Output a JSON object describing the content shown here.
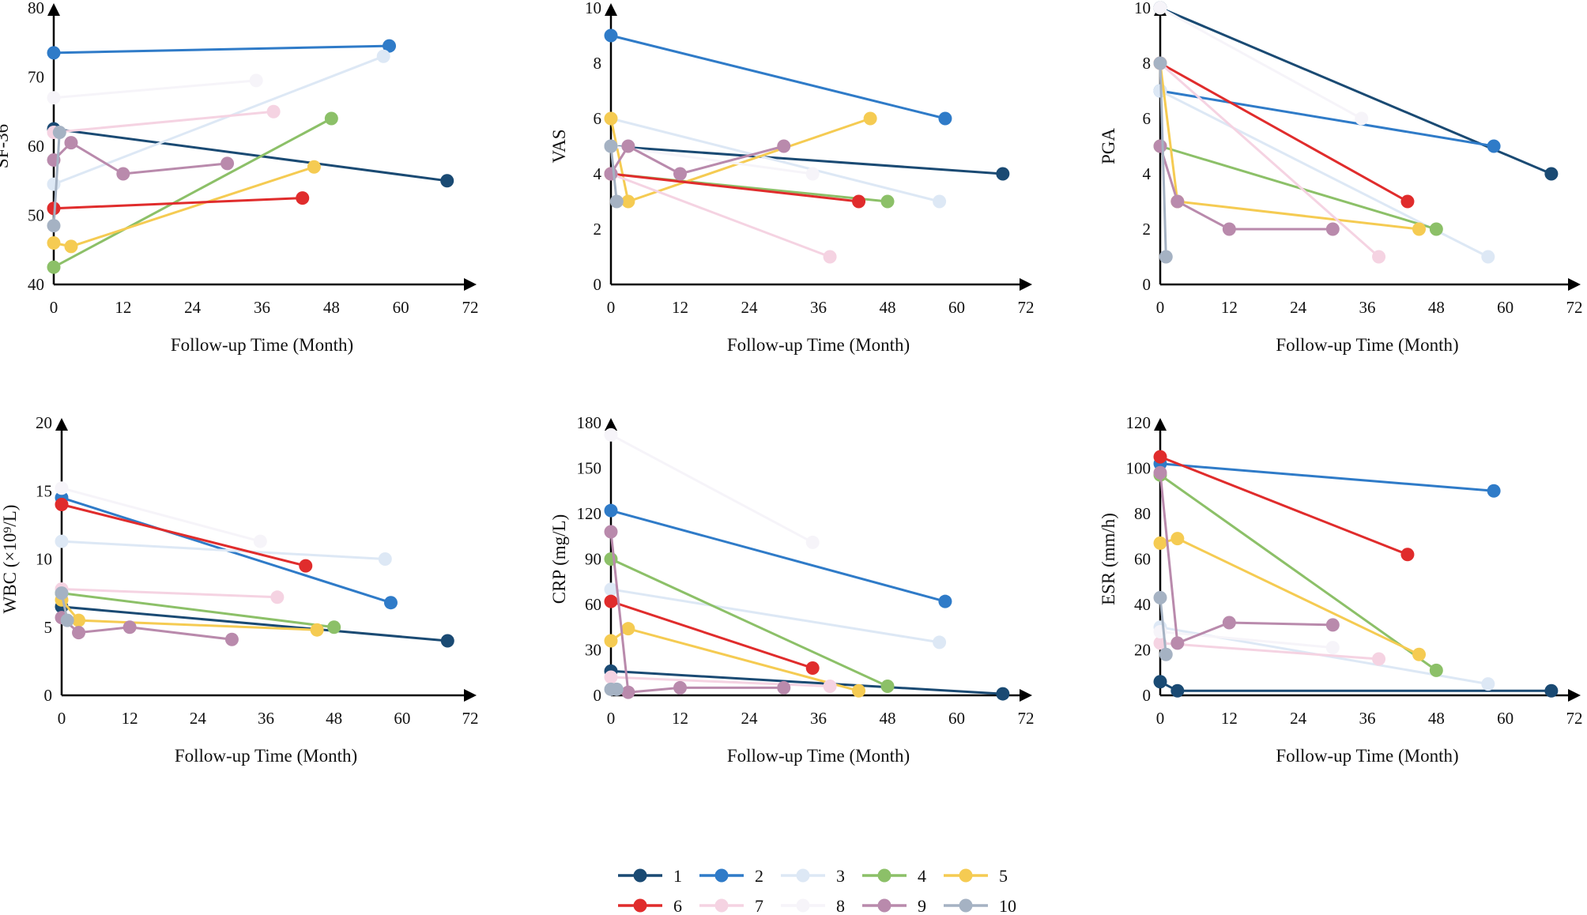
{
  "series_styles": [
    {
      "id": "1",
      "color": "#1a4a73"
    },
    {
      "id": "2",
      "color": "#2f7bc8"
    },
    {
      "id": "3",
      "color": "#dde8f5"
    },
    {
      "id": "4",
      "color": "#8cc068"
    },
    {
      "id": "5",
      "color": "#f5cb52"
    },
    {
      "id": "6",
      "color": "#e02c2c"
    },
    {
      "id": "7",
      "color": "#f5d3e2"
    },
    {
      "id": "8",
      "color": "#f6f4f9"
    },
    {
      "id": "9",
      "color": "#b98aac"
    },
    {
      "id": "10",
      "color": "#a5b2c3"
    }
  ],
  "legend": {
    "labels": [
      "1",
      "2",
      "3",
      "4",
      "5",
      "6",
      "7",
      "8",
      "9",
      "10"
    ]
  },
  "chart_data": [
    {
      "type": "line",
      "title": "",
      "xlabel": "Follow-up Time (Month)",
      "ylabel": "SF-36",
      "xlim": [
        0,
        72
      ],
      "xticks": [
        "0",
        "12",
        "24",
        "36",
        "48",
        "60",
        "72"
      ],
      "ylim": [
        40,
        80
      ],
      "yticks": [
        "40",
        "50",
        "60",
        "70",
        "80"
      ],
      "series": [
        {
          "name": "1",
          "x": [
            0,
            68
          ],
          "y": [
            62.5,
            55
          ]
        },
        {
          "name": "2",
          "x": [
            0,
            58
          ],
          "y": [
            73.5,
            74.5
          ]
        },
        {
          "name": "3",
          "x": [
            0,
            57
          ],
          "y": [
            54.5,
            73
          ]
        },
        {
          "name": "4",
          "x": [
            0,
            48
          ],
          "y": [
            42.5,
            64
          ]
        },
        {
          "name": "5",
          "x": [
            0,
            3,
            45
          ],
          "y": [
            46,
            45.5,
            57
          ]
        },
        {
          "name": "6",
          "x": [
            0,
            43
          ],
          "y": [
            51,
            52.5
          ]
        },
        {
          "name": "7",
          "x": [
            0,
            38
          ],
          "y": [
            62,
            65
          ]
        },
        {
          "name": "8",
          "x": [
            0,
            35
          ],
          "y": [
            67,
            69.5
          ]
        },
        {
          "name": "9",
          "x": [
            0,
            3,
            12,
            30
          ],
          "y": [
            58,
            60.5,
            56,
            57.5
          ]
        },
        {
          "name": "10",
          "x": [
            0,
            1
          ],
          "y": [
            48.5,
            62
          ]
        }
      ]
    },
    {
      "type": "line",
      "title": "",
      "xlabel": "Follow-up Time (Month)",
      "ylabel": "VAS",
      "xlim": [
        0,
        72
      ],
      "xticks": [
        "0",
        "12",
        "24",
        "36",
        "48",
        "60",
        "72"
      ],
      "ylim": [
        0,
        10
      ],
      "yticks": [
        "0",
        "2",
        "4",
        "6",
        "8",
        "10"
      ],
      "series": [
        {
          "name": "1",
          "x": [
            0,
            68
          ],
          "y": [
            5,
            4
          ]
        },
        {
          "name": "2",
          "x": [
            0,
            58
          ],
          "y": [
            9,
            6
          ]
        },
        {
          "name": "3",
          "x": [
            0,
            57
          ],
          "y": [
            6,
            3
          ]
        },
        {
          "name": "4",
          "x": [
            0,
            48
          ],
          "y": [
            4,
            3
          ]
        },
        {
          "name": "5",
          "x": [
            0,
            3,
            45
          ],
          "y": [
            6,
            3,
            6
          ]
        },
        {
          "name": "6",
          "x": [
            0,
            43
          ],
          "y": [
            4,
            3
          ]
        },
        {
          "name": "7",
          "x": [
            0,
            38
          ],
          "y": [
            4,
            1
          ]
        },
        {
          "name": "8",
          "x": [
            0,
            35
          ],
          "y": [
            5,
            4
          ]
        },
        {
          "name": "9",
          "x": [
            0,
            3,
            12,
            30
          ],
          "y": [
            4,
            5,
            4,
            5
          ]
        },
        {
          "name": "10",
          "x": [
            0,
            1
          ],
          "y": [
            5,
            3
          ]
        }
      ]
    },
    {
      "type": "line",
      "title": "",
      "xlabel": "Follow-up Time (Month)",
      "ylabel": "PGA",
      "xlim": [
        0,
        72
      ],
      "xticks": [
        "0",
        "12",
        "24",
        "36",
        "48",
        "60",
        "72"
      ],
      "ylim": [
        0,
        10
      ],
      "yticks": [
        "0",
        "2",
        "4",
        "6",
        "8",
        "10"
      ],
      "series": [
        {
          "name": "1",
          "x": [
            0,
            68
          ],
          "y": [
            10,
            4
          ]
        },
        {
          "name": "2",
          "x": [
            0,
            58
          ],
          "y": [
            7,
            5
          ]
        },
        {
          "name": "3",
          "x": [
            0,
            57
          ],
          "y": [
            7,
            1
          ]
        },
        {
          "name": "4",
          "x": [
            0,
            48
          ],
          "y": [
            5,
            2
          ]
        },
        {
          "name": "5",
          "x": [
            0,
            3,
            45
          ],
          "y": [
            8,
            3,
            2
          ]
        },
        {
          "name": "6",
          "x": [
            0,
            43
          ],
          "y": [
            8,
            3
          ]
        },
        {
          "name": "7",
          "x": [
            0,
            38
          ],
          "y": [
            8,
            1
          ]
        },
        {
          "name": "8",
          "x": [
            0,
            35
          ],
          "y": [
            10,
            6
          ]
        },
        {
          "name": "9",
          "x": [
            0,
            3,
            12,
            30
          ],
          "y": [
            5,
            3,
            2,
            2
          ]
        },
        {
          "name": "10",
          "x": [
            0,
            1
          ],
          "y": [
            8,
            1
          ]
        }
      ]
    },
    {
      "type": "line",
      "title": "",
      "xlabel": "Follow-up Time (Month)",
      "ylabel": "WBC (×10⁹/L)",
      "xlim": [
        0,
        72
      ],
      "xticks": [
        "0",
        "12",
        "24",
        "36",
        "48",
        "60",
        "72"
      ],
      "ylim": [
        0,
        20
      ],
      "yticks": [
        "0",
        "5",
        "10",
        "15",
        "20"
      ],
      "series": [
        {
          "name": "1",
          "x": [
            0,
            68
          ],
          "y": [
            6.5,
            4
          ]
        },
        {
          "name": "2",
          "x": [
            0,
            58
          ],
          "y": [
            14.5,
            6.8
          ]
        },
        {
          "name": "3",
          "x": [
            0,
            57
          ],
          "y": [
            11.3,
            10
          ]
        },
        {
          "name": "4",
          "x": [
            0,
            48
          ],
          "y": [
            7.5,
            5
          ]
        },
        {
          "name": "5",
          "x": [
            0,
            3,
            45
          ],
          "y": [
            7,
            5.5,
            4.8
          ]
        },
        {
          "name": "6",
          "x": [
            0,
            43
          ],
          "y": [
            14,
            9.5
          ]
        },
        {
          "name": "7",
          "x": [
            0,
            38
          ],
          "y": [
            7.8,
            7.2
          ]
        },
        {
          "name": "8",
          "x": [
            0,
            35
          ],
          "y": [
            15.2,
            11.3
          ]
        },
        {
          "name": "9",
          "x": [
            0,
            3,
            12,
            30
          ],
          "y": [
            5.7,
            4.6,
            5,
            4.1
          ]
        },
        {
          "name": "10",
          "x": [
            0,
            1
          ],
          "y": [
            7.5,
            5.5
          ]
        }
      ]
    },
    {
      "type": "line",
      "title": "",
      "xlabel": "Follow-up Time (Month)",
      "ylabel": "CRP (mg/L)",
      "xlim": [
        0,
        72
      ],
      "xticks": [
        "0",
        "12",
        "24",
        "36",
        "48",
        "60",
        "72"
      ],
      "ylim": [
        0,
        180
      ],
      "yticks": [
        "0",
        "30",
        "60",
        "90",
        "120",
        "150",
        "180"
      ],
      "series": [
        {
          "name": "1",
          "x": [
            0,
            68
          ],
          "y": [
            16,
            1
          ]
        },
        {
          "name": "2",
          "x": [
            0,
            58
          ],
          "y": [
            122,
            62
          ]
        },
        {
          "name": "3",
          "x": [
            0,
            57
          ],
          "y": [
            70,
            35
          ]
        },
        {
          "name": "4",
          "x": [
            0,
            48
          ],
          "y": [
            90,
            6
          ]
        },
        {
          "name": "5",
          "x": [
            0,
            3,
            43
          ],
          "y": [
            36,
            44,
            3
          ]
        },
        {
          "name": "6",
          "x": [
            0,
            35
          ],
          "y": [
            62,
            18
          ]
        },
        {
          "name": "7",
          "x": [
            0,
            38
          ],
          "y": [
            12,
            6
          ]
        },
        {
          "name": "8",
          "x": [
            0,
            35
          ],
          "y": [
            172,
            101
          ]
        },
        {
          "name": "9",
          "x": [
            0,
            3,
            12,
            30
          ],
          "y": [
            108,
            2,
            5,
            5
          ]
        },
        {
          "name": "10",
          "x": [
            0,
            1
          ],
          "y": [
            4,
            4
          ]
        }
      ]
    },
    {
      "type": "line",
      "title": "",
      "xlabel": "Follow-up Time (Month)",
      "ylabel": "ESR (mm/h)",
      "xlim": [
        0,
        72
      ],
      "xticks": [
        "0",
        "12",
        "24",
        "36",
        "48",
        "60",
        "72"
      ],
      "ylim": [
        0,
        120
      ],
      "yticks": [
        "0",
        "20",
        "40",
        "60",
        "80",
        "100",
        "120"
      ],
      "series": [
        {
          "name": "1",
          "x": [
            0,
            3,
            68
          ],
          "y": [
            6,
            2,
            2
          ]
        },
        {
          "name": "2",
          "x": [
            0,
            58
          ],
          "y": [
            102,
            90
          ]
        },
        {
          "name": "3",
          "x": [
            0,
            57
          ],
          "y": [
            30,
            5
          ]
        },
        {
          "name": "4",
          "x": [
            0,
            48
          ],
          "y": [
            97,
            11
          ]
        },
        {
          "name": "5",
          "x": [
            0,
            3,
            45
          ],
          "y": [
            67,
            69,
            18
          ]
        },
        {
          "name": "6",
          "x": [
            0,
            43
          ],
          "y": [
            105,
            62
          ]
        },
        {
          "name": "7",
          "x": [
            0,
            38
          ],
          "y": [
            23,
            16
          ]
        },
        {
          "name": "8",
          "x": [
            0,
            30
          ],
          "y": [
            28,
            21
          ]
        },
        {
          "name": "9",
          "x": [
            0,
            3,
            12,
            30
          ],
          "y": [
            98,
            23,
            32,
            31
          ]
        },
        {
          "name": "10",
          "x": [
            0,
            1
          ],
          "y": [
            43,
            18
          ]
        }
      ]
    }
  ]
}
